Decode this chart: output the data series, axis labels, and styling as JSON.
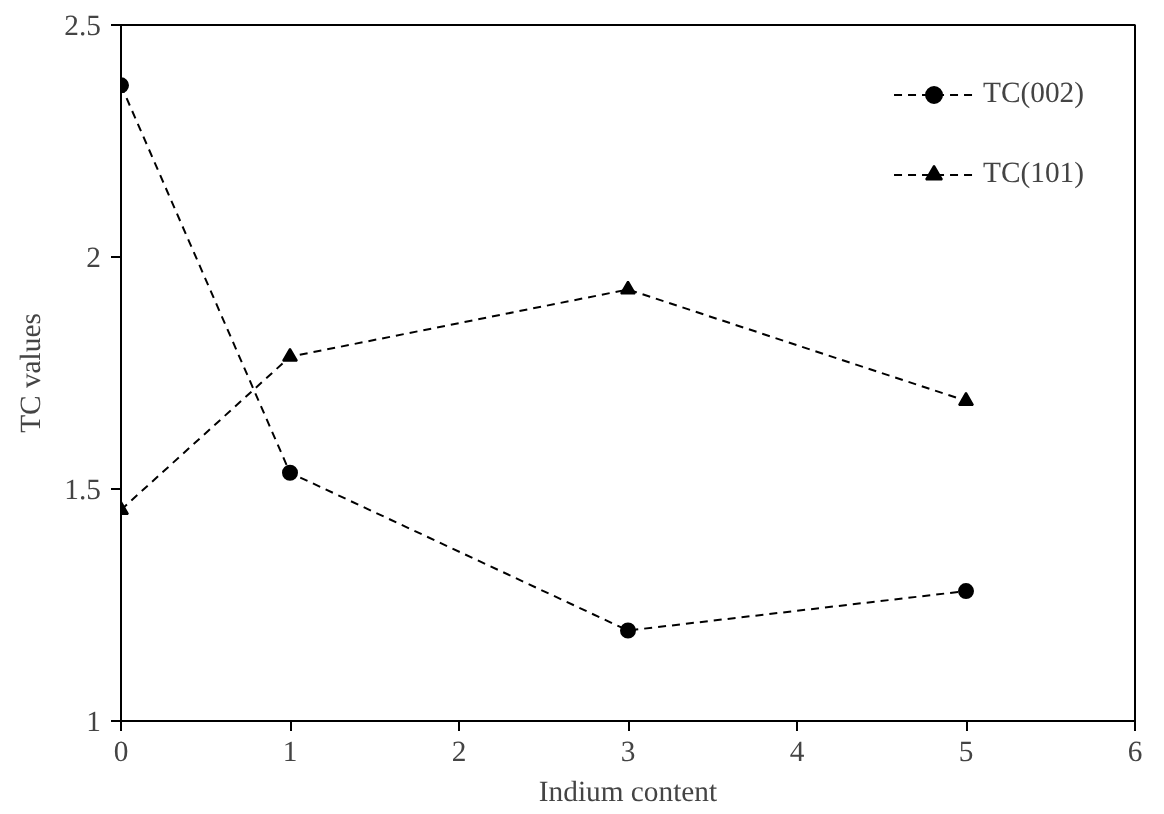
{
  "chart_data": {
    "type": "line",
    "xlabel": "Indium content",
    "ylabel": "TC values",
    "x": [
      0,
      1,
      3,
      5
    ],
    "series": [
      {
        "name": "TC(002)",
        "color": "#000000",
        "marker": "circle",
        "values": [
          2.37,
          1.535,
          1.195,
          1.28
        ]
      },
      {
        "name": "TC(101)",
        "color": "#000000",
        "marker": "triangle",
        "values": [
          1.455,
          1.785,
          1.93,
          1.69
        ]
      }
    ],
    "xlim": [
      0,
      6
    ],
    "xticks": [
      0,
      1,
      2,
      3,
      4,
      5,
      6
    ],
    "ylim": [
      1,
      2.5
    ],
    "yticks": [
      1,
      {
        "value": 1.5,
        "label": "1.5"
      },
      2,
      {
        "value": 2.5,
        "label": "2.5"
      }
    ],
    "line_style": "dashed",
    "grid": false,
    "legend": "top right"
  }
}
